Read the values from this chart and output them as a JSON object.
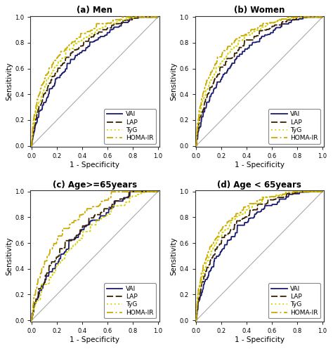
{
  "titles": [
    "(a) Men",
    "(b) Women",
    "(c) Age>=65years",
    "(d) Age < 65years"
  ],
  "colors": {
    "VAI": "#1a1a6e",
    "LAP": "#3a2000",
    "TyG": "#d4d400",
    "HOMA-IR": "#ccaa00"
  },
  "legend_labels": [
    "VAI",
    "LAP",
    "TyG",
    "HOMA-IR"
  ],
  "xlabel": "1 - Specificity",
  "ylabel": "Sensitivity",
  "background_color": "#ffffff",
  "diagonal_color": "#aaaaaa",
  "curves_params": [
    {
      "VAI": [
        0.72,
        1.8,
        0.018,
        10
      ],
      "LAP": [
        0.76,
        1.8,
        0.016,
        11
      ],
      "TyG": [
        0.79,
        1.8,
        0.014,
        12
      ],
      "HOMA-IR": [
        0.82,
        1.8,
        0.012,
        13
      ]
    },
    {
      "VAI": [
        0.73,
        1.8,
        0.018,
        20
      ],
      "LAP": [
        0.77,
        1.8,
        0.016,
        21
      ],
      "TyG": [
        0.8,
        1.8,
        0.014,
        22
      ],
      "HOMA-IR": [
        0.83,
        1.8,
        0.012,
        23
      ]
    },
    {
      "VAI": [
        0.68,
        1.5,
        0.025,
        30
      ],
      "LAP": [
        0.7,
        1.5,
        0.025,
        31
      ],
      "TyG": [
        0.65,
        1.5,
        0.025,
        32
      ],
      "HOMA-IR": [
        0.78,
        1.5,
        0.02,
        33
      ]
    },
    {
      "VAI": [
        0.74,
        1.8,
        0.018,
        40
      ],
      "LAP": [
        0.78,
        1.8,
        0.016,
        41
      ],
      "TyG": [
        0.81,
        1.8,
        0.014,
        42
      ],
      "HOMA-IR": [
        0.83,
        1.8,
        0.012,
        43
      ]
    }
  ]
}
